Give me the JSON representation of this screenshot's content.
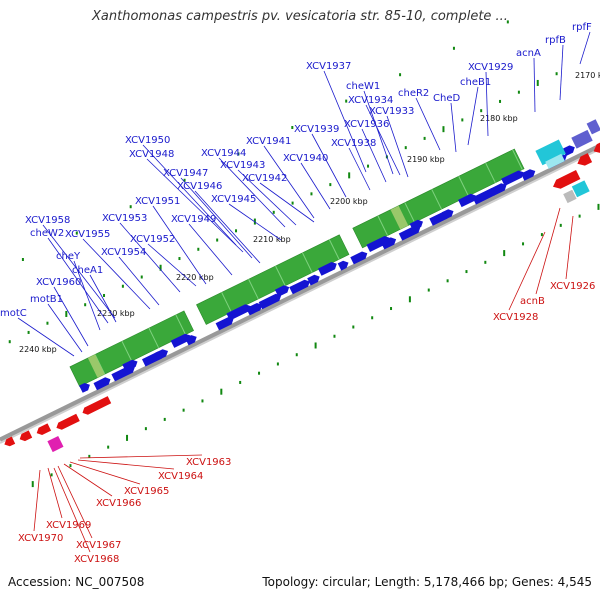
{
  "header": {
    "title": "Xanthomonas campestris pv. vesicatoria str. 85-10, complete ..."
  },
  "footer": {
    "accession": "Accession: NC_007508",
    "summary": "Topology: circular; Length: 5,178,466 bp; Genes: 4,545"
  },
  "colors": {
    "forward_gene": "#1414d2",
    "reverse_gene": "#e21010",
    "pseudo_or_rna": "#e020b0",
    "cds_feature": "#3aa83a",
    "misc_feature": "#9ac86a",
    "special_feature": "#22c6d8",
    "special_feature_b": "#5f5fcf",
    "gap_marker": "#bbbbbb",
    "tick_mark": "#118811",
    "forward_label": "#1a1acc",
    "reverse_label": "#cc1111",
    "backbone": "#999999"
  },
  "map": {
    "position_labels": [
      "2170 kbp",
      "2180 kbp",
      "2190 kbp",
      "2200 kbp",
      "2210 kbp",
      "2220 kbp",
      "2230 kbp",
      "2240 kbp"
    ],
    "forward_gene_labels": [
      "rpfF",
      "rpfB",
      "acnA",
      "XCV1929",
      "cheB1",
      "XCV1937",
      "cheR2",
      "CheD",
      "cheW1",
      "XCV1934",
      "XCV1933",
      "XCV1936",
      "XCV1950",
      "XCV1939",
      "XCV1941",
      "XCV1938",
      "XCV1948",
      "XCV1944",
      "XCV1940",
      "XCV1943",
      "XCV1947",
      "XCV1946",
      "XCV1942",
      "XCV1945",
      "XCV1951",
      "XCV1958",
      "XCV1953",
      "XCV1949",
      "cheW2",
      "XCV1955",
      "XCV1952",
      "cheY",
      "XCV1954",
      "cheA1",
      "XCV1960",
      "motB1",
      "motC"
    ],
    "reverse_gene_labels": [
      "acnB",
      "XCV1926",
      "XCV1928",
      "XCV1963",
      "XCV1964",
      "XCV1965",
      "XCV1966",
      "XCV1969",
      "XCV1970",
      "XCV1967",
      "XCV1968"
    ]
  }
}
